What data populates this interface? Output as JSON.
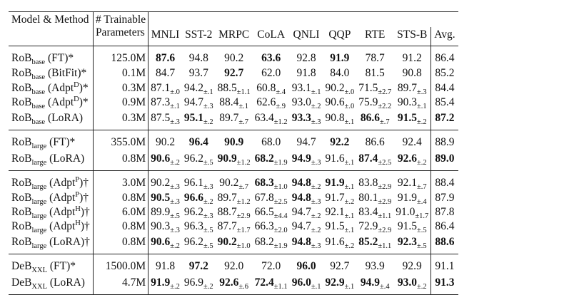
{
  "header": {
    "method": "Model & Method",
    "params_line1": "# Trainable",
    "params_line2": "Parameters",
    "tasks": [
      "MNLI",
      "SST-2",
      "MRPC",
      "CoLA",
      "QNLI",
      "QQP",
      "RTE",
      "STS-B"
    ],
    "avg": "Avg."
  },
  "groups": [
    {
      "rows": [
        {
          "model": "RoB",
          "size": "base",
          "method": " (FT)*",
          "sup": "",
          "tail": "",
          "params": "125.0M",
          "scores": [
            {
              "v": "87.6",
              "b": true
            },
            {
              "v": "94.8"
            },
            {
              "v": "90.2"
            },
            {
              "v": "63.6",
              "b": true
            },
            {
              "v": "92.8"
            },
            {
              "v": "91.9",
              "b": true
            },
            {
              "v": "78.7"
            },
            {
              "v": "91.2"
            }
          ],
          "avg": {
            "v": "86.4"
          }
        },
        {
          "model": "RoB",
          "size": "base",
          "method": " (BitFit)*",
          "sup": "",
          "tail": "",
          "params": "0.1M",
          "scores": [
            {
              "v": "84.7"
            },
            {
              "v": "93.7"
            },
            {
              "v": "92.7",
              "b": true
            },
            {
              "v": "62.0"
            },
            {
              "v": "91.8"
            },
            {
              "v": "84.0"
            },
            {
              "v": "81.5"
            },
            {
              "v": "90.8"
            }
          ],
          "avg": {
            "v": "85.2"
          }
        },
        {
          "model": "RoB",
          "size": "base",
          "method": " (Adpt",
          "sup": "D",
          "tail": ")*",
          "params": "0.3M",
          "scores": [
            {
              "v": "87.1",
              "pm": "±.0"
            },
            {
              "v": "94.2",
              "pm": "±.1"
            },
            {
              "v": "88.5",
              "pm": "±1.1"
            },
            {
              "v": "60.8",
              "pm": "±.4"
            },
            {
              "v": "93.1",
              "pm": "±.1"
            },
            {
              "v": "90.2",
              "pm": "±.0"
            },
            {
              "v": "71.5",
              "pm": "±2.7"
            },
            {
              "v": "89.7",
              "pm": "±.3"
            }
          ],
          "avg": {
            "v": "84.4"
          }
        },
        {
          "model": "RoB",
          "size": "base",
          "method": " (Adpt",
          "sup": "D",
          "tail": ")*",
          "params": "0.9M",
          "scores": [
            {
              "v": "87.3",
              "pm": "±.1"
            },
            {
              "v": "94.7",
              "pm": "±.3"
            },
            {
              "v": "88.4",
              "pm": "±.1"
            },
            {
              "v": "62.6",
              "pm": "±.9"
            },
            {
              "v": "93.0",
              "pm": "±.2"
            },
            {
              "v": "90.6",
              "pm": "±.0"
            },
            {
              "v": "75.9",
              "pm": "±2.2"
            },
            {
              "v": "90.3",
              "pm": "±.1"
            }
          ],
          "avg": {
            "v": "85.4"
          }
        },
        {
          "model": "RoB",
          "size": "base",
          "method": " (LoRA)",
          "sup": "",
          "tail": "",
          "params": "0.3M",
          "scores": [
            {
              "v": "87.5",
              "pm": "±.3"
            },
            {
              "v": "95.1",
              "pm": "±.2",
              "b": true
            },
            {
              "v": "89.7",
              "pm": "±.7"
            },
            {
              "v": "63.4",
              "pm": "±1.2"
            },
            {
              "v": "93.3",
              "pm": "±.3",
              "b": true
            },
            {
              "v": "90.8",
              "pm": "±.1"
            },
            {
              "v": "86.6",
              "pm": "±.7",
              "b": true
            },
            {
              "v": "91.5",
              "pm": "±.2",
              "b": true
            }
          ],
          "avg": {
            "v": "87.2",
            "b": true
          }
        }
      ]
    },
    {
      "rows": [
        {
          "model": "RoB",
          "size": "large",
          "method": " (FT)*",
          "sup": "",
          "tail": "",
          "params": "355.0M",
          "scores": [
            {
              "v": "90.2"
            },
            {
              "v": "96.4",
              "b": true
            },
            {
              "v": "90.9",
              "b": true
            },
            {
              "v": "68.0"
            },
            {
              "v": "94.7"
            },
            {
              "v": "92.2",
              "b": true
            },
            {
              "v": "86.6"
            },
            {
              "v": "92.4"
            }
          ],
          "avg": {
            "v": "88.9"
          }
        },
        {
          "model": "RoB",
          "size": "large",
          "method": " (LoRA)",
          "sup": "",
          "tail": "",
          "params": "0.8M",
          "scores": [
            {
              "v": "90.6",
              "pm": "±.2",
              "b": true
            },
            {
              "v": "96.2",
              "pm": "±.5"
            },
            {
              "v": "90.9",
              "pm": "±1.2",
              "b": true
            },
            {
              "v": "68.2",
              "pm": "±1.9",
              "b": true
            },
            {
              "v": "94.9",
              "pm": "±.3",
              "b": true
            },
            {
              "v": "91.6",
              "pm": "±.1"
            },
            {
              "v": "87.4",
              "pm": "±2.5",
              "b": true
            },
            {
              "v": "92.6",
              "pm": "±.2",
              "b": true
            }
          ],
          "avg": {
            "v": "89.0",
            "b": true
          }
        }
      ]
    },
    {
      "rows": [
        {
          "model": "RoB",
          "size": "large",
          "method": " (Adpt",
          "sup": "P",
          "tail": ")†",
          "params": "3.0M",
          "scores": [
            {
              "v": "90.2",
              "pm": "±.3"
            },
            {
              "v": "96.1",
              "pm": "±.3"
            },
            {
              "v": "90.2",
              "pm": "±.7"
            },
            {
              "v": "68.3",
              "pm": "±1.0",
              "b": true
            },
            {
              "v": "94.8",
              "pm": "±.2",
              "b": true
            },
            {
              "v": "91.9",
              "pm": "±.1",
              "b": true
            },
            {
              "v": "83.8",
              "pm": "±2.9"
            },
            {
              "v": "92.1",
              "pm": "±.7"
            }
          ],
          "avg": {
            "v": "88.4"
          }
        },
        {
          "model": "RoB",
          "size": "large",
          "method": " (Adpt",
          "sup": "P",
          "tail": ")†",
          "params": "0.8M",
          "scores": [
            {
              "v": "90.5",
              "pm": "±.3",
              "b": true
            },
            {
              "v": "96.6",
              "pm": "±.2",
              "b": true
            },
            {
              "v": "89.7",
              "pm": "±1.2"
            },
            {
              "v": "67.8",
              "pm": "±2.5"
            },
            {
              "v": "94.8",
              "pm": "±.3",
              "b": true
            },
            {
              "v": "91.7",
              "pm": "±.2"
            },
            {
              "v": "80.1",
              "pm": "±2.9"
            },
            {
              "v": "91.9",
              "pm": "±.4"
            }
          ],
          "avg": {
            "v": "87.9"
          }
        },
        {
          "model": "RoB",
          "size": "large",
          "method": " (Adpt",
          "sup": "H",
          "tail": ")†",
          "params": "6.0M",
          "scores": [
            {
              "v": "89.9",
              "pm": "±.5"
            },
            {
              "v": "96.2",
              "pm": "±.3"
            },
            {
              "v": "88.7",
              "pm": "±2.9"
            },
            {
              "v": "66.5",
              "pm": "±4.4"
            },
            {
              "v": "94.7",
              "pm": "±.2"
            },
            {
              "v": "92.1",
              "pm": "±.1"
            },
            {
              "v": "83.4",
              "pm": "±1.1"
            },
            {
              "v": "91.0",
              "pm": "±1.7"
            }
          ],
          "avg": {
            "v": "87.8"
          }
        },
        {
          "model": "RoB",
          "size": "large",
          "method": " (Adpt",
          "sup": "H",
          "tail": ")†",
          "params": "0.8M",
          "scores": [
            {
              "v": "90.3",
              "pm": "±.3"
            },
            {
              "v": "96.3",
              "pm": "±.5"
            },
            {
              "v": "87.7",
              "pm": "±1.7"
            },
            {
              "v": "66.3",
              "pm": "±2.0"
            },
            {
              "v": "94.7",
              "pm": "±.2"
            },
            {
              "v": "91.5",
              "pm": "±.1"
            },
            {
              "v": "72.9",
              "pm": "±2.9"
            },
            {
              "v": "91.5",
              "pm": "±.5"
            }
          ],
          "avg": {
            "v": "86.4"
          }
        },
        {
          "model": "RoB",
          "size": "large",
          "method": " (LoRA)†",
          "sup": "",
          "tail": "",
          "params": "0.8M",
          "scores": [
            {
              "v": "90.6",
              "pm": "±.2",
              "b": true
            },
            {
              "v": "96.2",
              "pm": "±.5"
            },
            {
              "v": "90.2",
              "pm": "±1.0",
              "b": true
            },
            {
              "v": "68.2",
              "pm": "±1.9"
            },
            {
              "v": "94.8",
              "pm": "±.3",
              "b": true
            },
            {
              "v": "91.6",
              "pm": "±.2"
            },
            {
              "v": "85.2",
              "pm": "±1.1",
              "b": true
            },
            {
              "v": "92.3",
              "pm": "±.5",
              "b": true
            }
          ],
          "avg": {
            "v": "88.6",
            "b": true
          }
        }
      ]
    },
    {
      "rows": [
        {
          "model": "DeB",
          "size": "XXL",
          "method": " (FT)*",
          "sup": "",
          "tail": "",
          "params": "1500.0M",
          "scores": [
            {
              "v": "91.8"
            },
            {
              "v": "97.2",
              "b": true
            },
            {
              "v": "92.0"
            },
            {
              "v": "72.0"
            },
            {
              "v": "96.0",
              "b": true
            },
            {
              "v": "92.7"
            },
            {
              "v": "93.9"
            },
            {
              "v": "92.9"
            }
          ],
          "avg": {
            "v": "91.1"
          }
        },
        {
          "model": "DeB",
          "size": "XXL",
          "method": " (LoRA)",
          "sup": "",
          "tail": "",
          "params": "4.7M",
          "scores": [
            {
              "v": "91.9",
              "pm": "±.2",
              "b": true
            },
            {
              "v": "96.9",
              "pm": "±.2"
            },
            {
              "v": "92.6",
              "pm": "±.6",
              "b": true
            },
            {
              "v": "72.4",
              "pm": "±1.1",
              "b": true
            },
            {
              "v": "96.0",
              "pm": "±.1",
              "b": true
            },
            {
              "v": "92.9",
              "pm": "±.1",
              "b": true
            },
            {
              "v": "94.9",
              "pm": "±.4",
              "b": true
            },
            {
              "v": "93.0",
              "pm": "±.2",
              "b": true
            }
          ],
          "avg": {
            "v": "91.3",
            "b": true
          }
        }
      ]
    }
  ]
}
